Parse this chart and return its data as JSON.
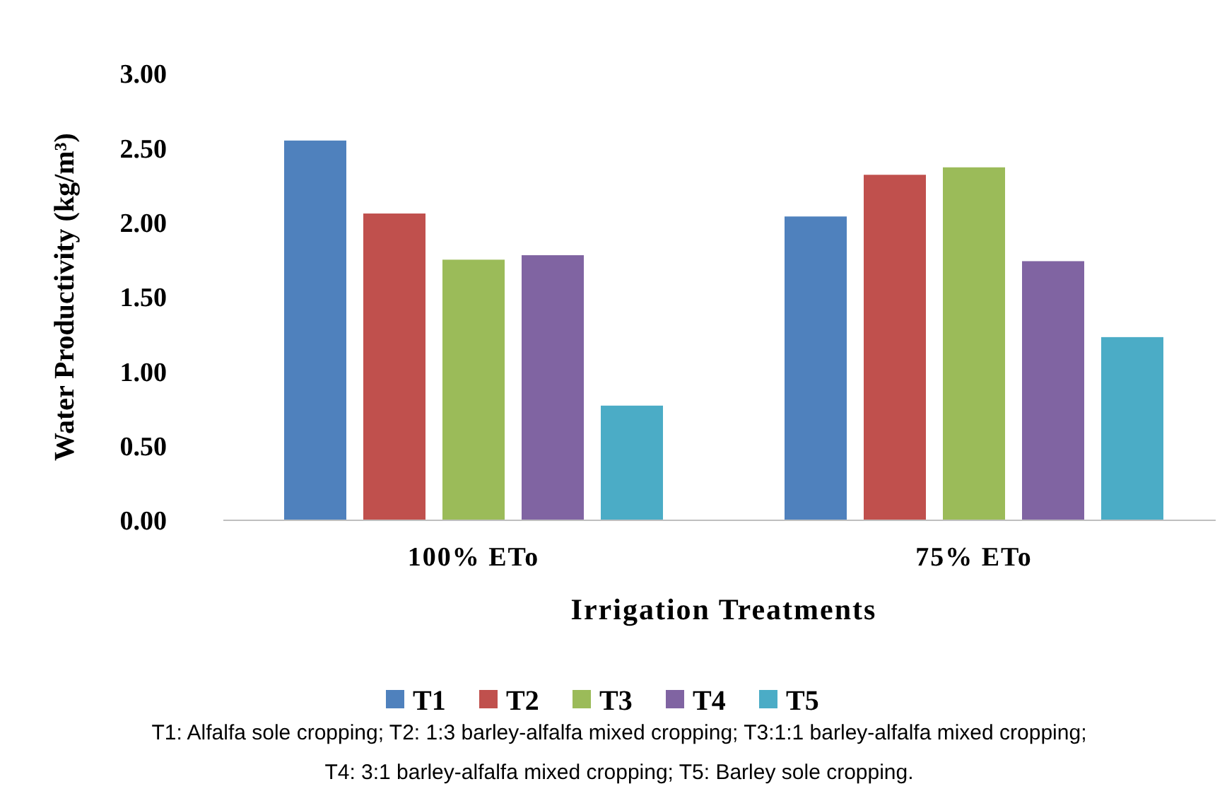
{
  "chart_data": {
    "type": "bar",
    "xlabel": "Irrigation Treatments",
    "ylabel": "Water Productivity (kg/m³)",
    "categories": [
      "100% ETo",
      "75% ETo"
    ],
    "series": [
      {
        "name": "T1",
        "color": "#4f81bd",
        "values": [
          2.55,
          2.04
        ]
      },
      {
        "name": "T2",
        "color": "#c0504d",
        "values": [
          2.06,
          2.32
        ]
      },
      {
        "name": "T3",
        "color": "#9bbb59",
        "values": [
          1.75,
          2.37
        ]
      },
      {
        "name": "T4",
        "color": "#8064a2",
        "values": [
          1.78,
          1.74
        ]
      },
      {
        "name": "T5",
        "color": "#4bacc6",
        "values": [
          0.77,
          1.23
        ]
      }
    ],
    "ylim": [
      0,
      3
    ],
    "yticks": [
      {
        "value": 0,
        "label": "0.00"
      },
      {
        "value": 0.5,
        "label": "0.50"
      },
      {
        "value": 1,
        "label": "1.00"
      },
      {
        "value": 1.5,
        "label": "1.50"
      },
      {
        "value": 2,
        "label": "2.00"
      },
      {
        "value": 2.5,
        "label": "2.50"
      },
      {
        "value": 3,
        "label": "3.00"
      }
    ],
    "grid": false,
    "legend": "bottom",
    "annotations": [
      "T1: Alfalfa sole cropping; T2: 1:3 barley-alfalfa mixed cropping; T3:1:1 barley-alfalfa mixed cropping;",
      "T4: 3:1 barley-alfalfa mixed cropping; T5: Barley sole cropping."
    ]
  }
}
